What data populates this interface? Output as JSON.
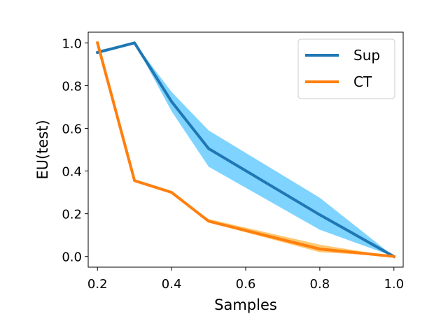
{
  "chart_data": {
    "type": "line",
    "title": "",
    "xlabel": "Samples",
    "ylabel": "EU(test)",
    "xlim": [
      0.175,
      1.025
    ],
    "ylim": [
      -0.05,
      1.05
    ],
    "xticks": [
      "0.2",
      "0.4",
      "0.6",
      "0.8",
      "1.0"
    ],
    "yticks": [
      "0.0",
      "0.2",
      "0.4",
      "0.6",
      "0.8",
      "1.0"
    ],
    "grid": false,
    "legend_position": "top-right",
    "series": [
      {
        "name": "Sup",
        "color": "#1f77b4",
        "band_color": "#7fd4ff",
        "x": [
          0.2,
          0.3,
          0.4,
          0.5,
          0.8,
          1.0
        ],
        "y": [
          0.955,
          1.0,
          0.725,
          0.505,
          0.195,
          0.0
        ],
        "lower": [
          0.95,
          1.0,
          0.68,
          0.42,
          0.125,
          0.0
        ],
        "upper": [
          0.965,
          1.0,
          0.77,
          0.59,
          0.275,
          0.0
        ]
      },
      {
        "name": "CT",
        "color": "#ff7f0e",
        "band_color": "#ffc870",
        "x": [
          0.2,
          0.3,
          0.4,
          0.5,
          0.8,
          1.0
        ],
        "y": [
          1.0,
          0.355,
          0.3,
          0.165,
          0.035,
          0.0
        ],
        "lower": [
          1.0,
          0.355,
          0.3,
          0.16,
          0.02,
          0.0
        ],
        "upper": [
          1.0,
          0.355,
          0.3,
          0.175,
          0.055,
          0.0
        ]
      }
    ]
  }
}
